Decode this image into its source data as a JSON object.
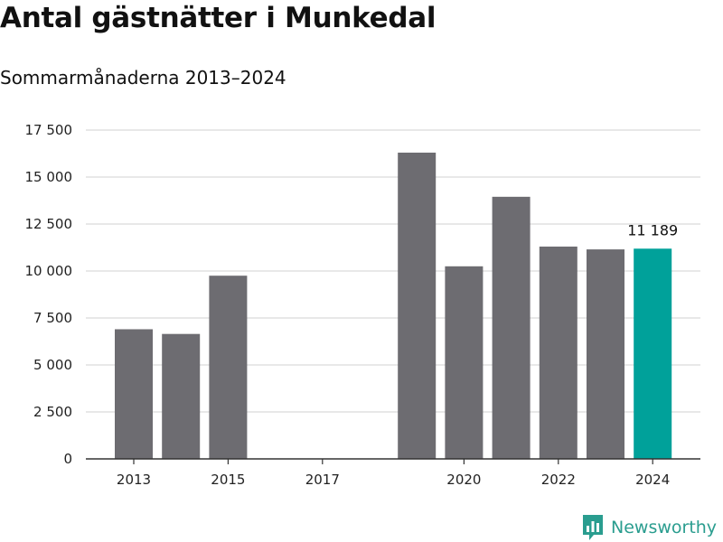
{
  "title": "Antal gästnätter i Munkedal",
  "subtitle": "Sommarmånaderna 2013–2024",
  "brand": "Newsworthy",
  "colors": {
    "bar": "#6d6c71",
    "highlight": "#00a19a",
    "grid": "#d9d9d9",
    "axis": "#333333",
    "brand": "#2a9d8f"
  },
  "chart_data": {
    "type": "bar",
    "categories": [
      "2013",
      "2014",
      "2015",
      "2016",
      "2017",
      "2018",
      "2019",
      "2020",
      "2021",
      "2022",
      "2023",
      "2024"
    ],
    "values": [
      6900,
      6650,
      9750,
      null,
      null,
      null,
      16300,
      10250,
      13950,
      11300,
      11150,
      11189
    ],
    "highlight": "2024",
    "data_labels": [
      {
        "category": "2024",
        "text": "11 189"
      }
    ],
    "xticks": [
      "2013",
      "2015",
      "2017",
      "2020",
      "2022",
      "2024"
    ],
    "ylim": [
      0,
      17500
    ],
    "yticks": [
      0,
      2500,
      5000,
      7500,
      10000,
      12500,
      15000,
      17500
    ],
    "ytick_labels": [
      "0",
      "2 500",
      "5 000",
      "7 500",
      "10 000",
      "12 500",
      "15 000",
      "17 500"
    ],
    "xlabel": "",
    "ylabel": "",
    "grid": true
  }
}
